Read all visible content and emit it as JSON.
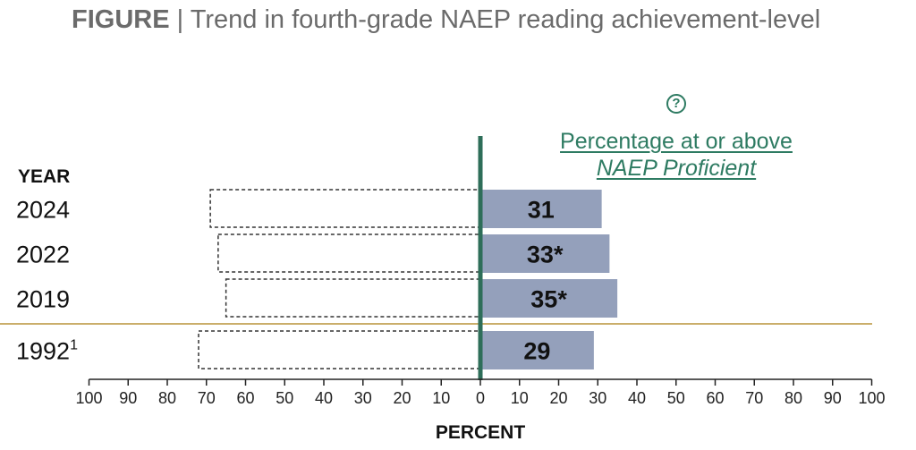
{
  "header": {
    "figure_label": "FIGURE",
    "separator": "|",
    "title": "Trend in fourth-grade NAEP reading achievement-level"
  },
  "help_icon": {
    "name": "question-circle-icon",
    "glyph": "?"
  },
  "proficient_label": {
    "line1": "Percentage at or above",
    "line2": "NAEP Proficient"
  },
  "colors": {
    "bar": "#94a0bb",
    "axis_line": "#2e6e59",
    "link": "#2e7b62",
    "separator": "#b8943a"
  },
  "chart_data": {
    "type": "bar",
    "orientation": "horizontal",
    "y_header": "YEAR",
    "categories": [
      "2024",
      "2022",
      "2019",
      "1992"
    ],
    "category_superscripts": [
      "",
      "",
      "",
      "1"
    ],
    "values": [
      31,
      33,
      35,
      29
    ],
    "value_labels": [
      "31",
      "33*",
      "35*",
      "29"
    ],
    "below_basic_dashed_outline": [
      69,
      67,
      65,
      72
    ],
    "separator_after_index": 2,
    "xlabel": "PERCENT",
    "xlim": [
      -100,
      100
    ],
    "x_ticks": [
      100,
      90,
      80,
      70,
      60,
      50,
      40,
      30,
      20,
      10,
      0,
      10,
      20,
      30,
      40,
      50,
      60,
      70,
      80,
      90,
      100
    ]
  }
}
